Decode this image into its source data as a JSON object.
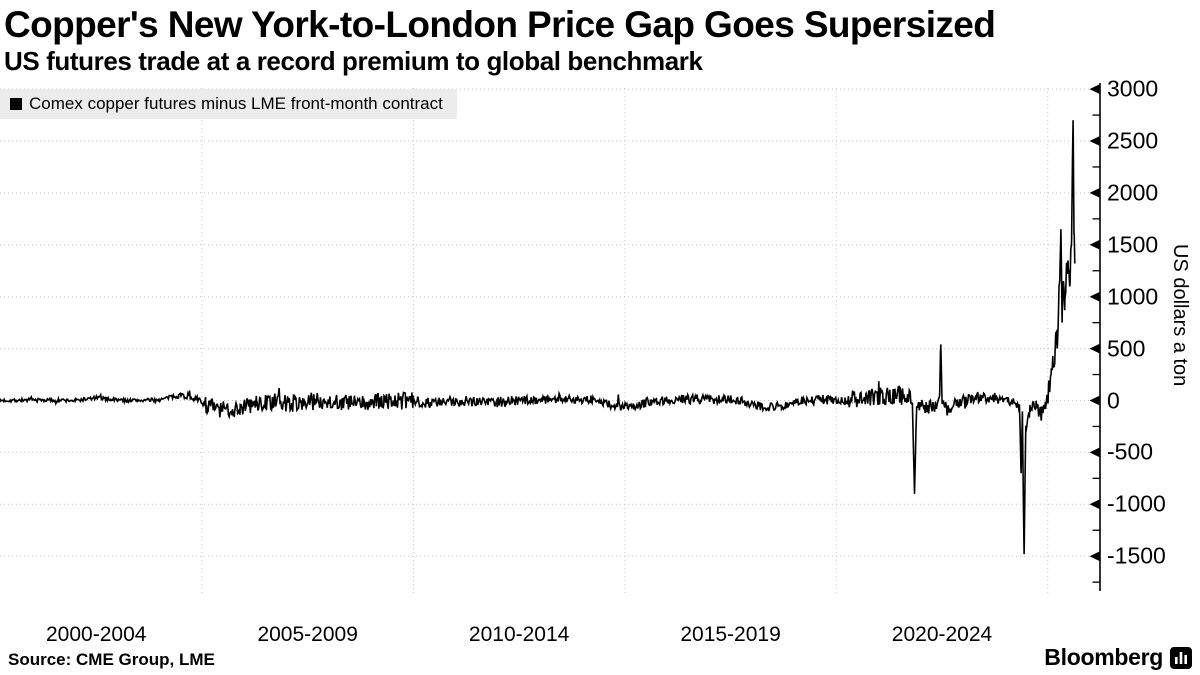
{
  "header": {
    "title": "Copper's New York-to-London Price Gap Goes Supersized",
    "subtitle": "US futures trade at a record premium to global benchmark"
  },
  "footer": {
    "source": "Source: CME Group, LME",
    "brand": "Bloomberg"
  },
  "chart_data": {
    "type": "line",
    "title": "Copper's New York-to-London Price Gap Goes Supersized",
    "subtitle": "US futures trade at a record premium to global benchmark",
    "xlabel": "",
    "ylabel": "US dollars a ton",
    "legend": {
      "label": "Comex copper futures minus LME front-month contract",
      "position": "top-left",
      "marker_color": "#000000"
    },
    "series_name": "Comex copper futures minus LME front-month contract",
    "x_tick_labels": [
      "2000-2004",
      "2005-2009",
      "2010-2014",
      "2015-2019",
      "2020-2024"
    ],
    "x_gridline_years": [
      2005,
      2010,
      2015,
      2020,
      2025
    ],
    "x_range_years": [
      2000.225,
      2025.64
    ],
    "y_ticks": [
      3000,
      2500,
      2000,
      1500,
      1000,
      500,
      0,
      -500,
      -1000,
      -1500
    ],
    "y_minor_step": 250,
    "ylim": [
      -1850,
      3130
    ],
    "grid": true,
    "line_color": "#000000",
    "grid_color": "#c6c6c6",
    "record_high_value": 2700,
    "record_low_value": -1480,
    "anchors": [
      [
        2000.225,
        0
      ],
      [
        2001.0,
        5
      ],
      [
        2002.0,
        0
      ],
      [
        2002.5,
        25
      ],
      [
        2003.2,
        0
      ],
      [
        2004.0,
        5
      ],
      [
        2004.45,
        55
      ],
      [
        2004.8,
        30
      ],
      [
        2005.1,
        -40
      ],
      [
        2005.45,
        -95
      ],
      [
        2005.9,
        -70
      ],
      [
        2006.3,
        -30
      ],
      [
        2006.7,
        -15
      ],
      [
        2007.2,
        -25
      ],
      [
        2007.8,
        0
      ],
      [
        2008.3,
        -15
      ],
      [
        2008.8,
        -35
      ],
      [
        2009.3,
        -5
      ],
      [
        2010.0,
        -5
      ],
      [
        2010.6,
        -25
      ],
      [
        2011.2,
        0
      ],
      [
        2012.0,
        -10
      ],
      [
        2012.8,
        5
      ],
      [
        2013.5,
        15
      ],
      [
        2014.2,
        10
      ],
      [
        2014.8,
        -55
      ],
      [
        2015.2,
        -65
      ],
      [
        2015.6,
        -5
      ],
      [
        2016.2,
        10
      ],
      [
        2016.8,
        15
      ],
      [
        2017.4,
        10
      ],
      [
        2017.9,
        -15
      ],
      [
        2018.35,
        -65
      ],
      [
        2018.7,
        -50
      ],
      [
        2019.2,
        -5
      ],
      [
        2019.7,
        10
      ],
      [
        2020.2,
        0
      ],
      [
        2020.7,
        25
      ],
      [
        2021.1,
        35
      ],
      [
        2021.5,
        55
      ],
      [
        2021.8,
        0
      ],
      [
        2021.85,
        -900
      ],
      [
        2021.9,
        -40
      ],
      [
        2022.1,
        -50
      ],
      [
        2022.35,
        -70
      ],
      [
        2022.44,
        30
      ],
      [
        2022.47,
        540
      ],
      [
        2022.5,
        10
      ],
      [
        2022.62,
        -90
      ],
      [
        2022.9,
        -10
      ],
      [
        2023.3,
        35
      ],
      [
        2023.7,
        25
      ],
      [
        2024.05,
        15
      ],
      [
        2024.25,
        -40
      ],
      [
        2024.33,
        -80
      ],
      [
        2024.37,
        -700
      ],
      [
        2024.4,
        -130
      ],
      [
        2024.44,
        -1480
      ],
      [
        2024.48,
        -220
      ],
      [
        2024.58,
        -90
      ],
      [
        2024.72,
        -50
      ],
      [
        2024.85,
        -130
      ],
      [
        2024.95,
        -40
      ],
      [
        2025.02,
        80
      ],
      [
        2025.08,
        260
      ],
      [
        2025.12,
        430
      ],
      [
        2025.15,
        300
      ],
      [
        2025.19,
        650
      ],
      [
        2025.22,
        520
      ],
      [
        2025.26,
        950
      ],
      [
        2025.29,
        1280
      ],
      [
        2025.31,
        1650
      ],
      [
        2025.34,
        750
      ],
      [
        2025.37,
        1150
      ],
      [
        2025.4,
        870
      ],
      [
        2025.44,
        1280
      ],
      [
        2025.48,
        1350
      ],
      [
        2025.52,
        1100
      ],
      [
        2025.56,
        1500
      ],
      [
        2025.6,
        2700
      ],
      [
        2025.62,
        1600
      ],
      [
        2025.64,
        1320
      ]
    ],
    "noise_segments": [
      [
        2000.2,
        2004.3,
        18
      ],
      [
        2004.3,
        2005.05,
        30
      ],
      [
        2005.05,
        2010.0,
        85
      ],
      [
        2010.0,
        2012.5,
        55
      ],
      [
        2012.5,
        2014.5,
        40
      ],
      [
        2014.5,
        2020.3,
        45
      ],
      [
        2020.3,
        2021.78,
        90
      ],
      [
        2021.78,
        2021.95,
        40
      ],
      [
        2021.95,
        2022.42,
        70
      ],
      [
        2022.42,
        2022.55,
        40
      ],
      [
        2022.55,
        2024.3,
        55
      ],
      [
        2024.3,
        2024.52,
        60
      ],
      [
        2024.52,
        2025.0,
        70
      ],
      [
        2025.0,
        2025.64,
        110
      ]
    ],
    "spike_threshold": 400
  }
}
